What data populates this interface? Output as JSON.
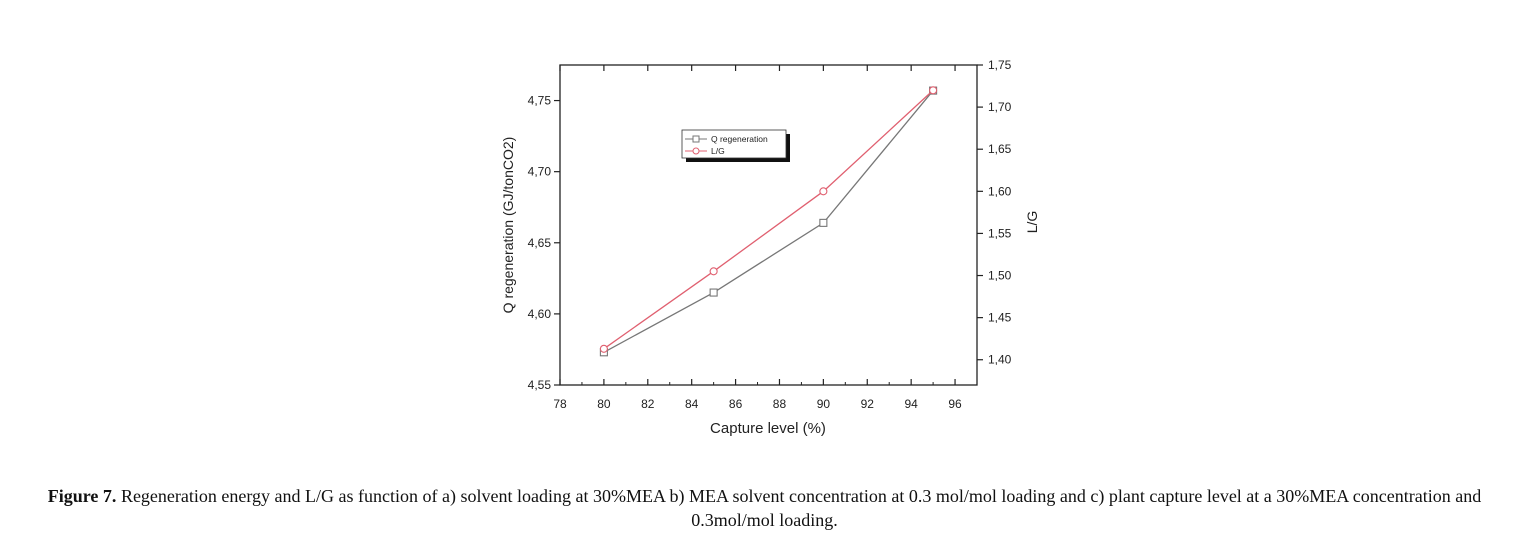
{
  "chart_data": {
    "type": "line",
    "xlabel": "Capture level (%)",
    "ylabel_left": "Q regeneration (GJ/tonCO2)",
    "ylabel_right": "L/G",
    "x_ticks": [
      "78",
      "80",
      "82",
      "84",
      "86",
      "88",
      "90",
      "92",
      "94",
      "96"
    ],
    "y_left_ticks": [
      "4,55",
      "4,60",
      "4,65",
      "4,70",
      "4,75"
    ],
    "y_right_ticks": [
      "1,40",
      "1,45",
      "1,50",
      "1,55",
      "1,60",
      "1,65",
      "1,70",
      "1,75"
    ],
    "xlim": [
      78,
      97
    ],
    "ylim_left": [
      4.55,
      4.775
    ],
    "ylim_right": [
      1.37,
      1.75
    ],
    "grid": false,
    "legend_position": "top-center",
    "series": [
      {
        "name": "Q regeneration",
        "axis": "left",
        "marker": "square",
        "color": "#777777",
        "x": [
          80,
          85,
          90,
          95
        ],
        "y": [
          4.573,
          4.615,
          4.664,
          4.757
        ]
      },
      {
        "name": "L/G",
        "axis": "right",
        "marker": "circle",
        "color": "#e06070",
        "x": [
          80,
          85,
          90,
          95
        ],
        "y": [
          1.413,
          1.505,
          1.6,
          1.72
        ]
      }
    ]
  },
  "caption": {
    "lead": "Figure 7.",
    "text": " Regeneration energy and L/G as function of a) solvent loading at 30%MEA b) MEA solvent concentration at 0.3 mol/mol loading and c) plant capture level at a 30%MEA concentration and 0.3mol/mol loading."
  }
}
